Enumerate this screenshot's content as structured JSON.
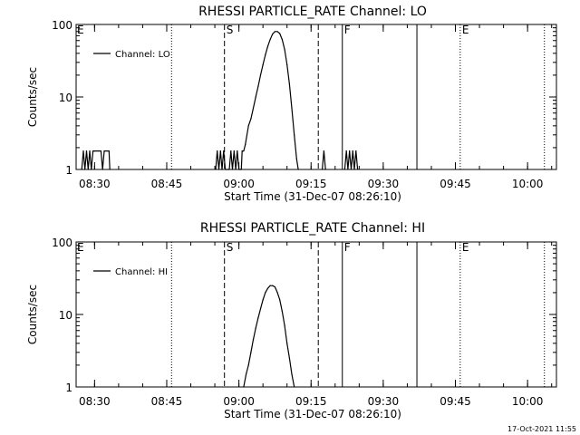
{
  "timestamp": "17-Oct-2021 11:55",
  "chart_data": [
    {
      "type": "line",
      "title": "RHESSI PARTICLE_RATE Channel: LO",
      "xlabel": "Start Time (31-Dec-07 08:26:10)",
      "ylabel": "Counts/sec",
      "yscale": "log",
      "ylim": [
        1,
        100
      ],
      "yticks": [
        "1",
        "10",
        "100"
      ],
      "xlim": [
        "08:26:10",
        "10:06:00"
      ],
      "xticks": [
        "08:30",
        "08:45",
        "09:00",
        "09:15",
        "09:30",
        "09:45",
        "10:00"
      ],
      "legend": {
        "position": "top-left",
        "entries": [
          "Channel: LO"
        ]
      },
      "markers": [
        {
          "time": "08:46:00",
          "style": "dotted",
          "label": ""
        },
        {
          "time": "08:57:00",
          "style": "dashed",
          "label": "S"
        },
        {
          "time": "09:16:30",
          "style": "dashed",
          "label": ""
        },
        {
          "time": "09:21:30",
          "style": "solid",
          "label": "F"
        },
        {
          "time": "09:37:00",
          "style": "solid",
          "label": ""
        },
        {
          "time": "09:46:00",
          "style": "dotted",
          "label": "E"
        },
        {
          "time": "10:03:30",
          "style": "dotted",
          "label": ""
        }
      ],
      "edge_labels": {
        "left": "E"
      },
      "series": [
        {
          "name": "Channel: LO",
          "points": [
            [
              "08:27:20",
              1
            ],
            [
              "08:27:40",
              1.8
            ],
            [
              "08:28:00",
              1
            ],
            [
              "08:28:20",
              1.8
            ],
            [
              "08:28:40",
              1
            ],
            [
              "08:29:00",
              1.8
            ],
            [
              "08:29:20",
              1
            ],
            [
              "08:29:40",
              1.8
            ],
            [
              "08:30:00",
              1.8
            ],
            [
              "08:31:20",
              1.8
            ],
            [
              "08:31:40",
              1
            ],
            [
              "08:32:00",
              1.8
            ],
            [
              "08:33:00",
              1.8
            ],
            [
              "08:33:10",
              1
            ],
            [
              null,
              null
            ],
            [
              "08:55:10",
              1
            ],
            [
              "08:55:30",
              1.8
            ],
            [
              "08:55:50",
              1
            ],
            [
              "08:56:10",
              1.8
            ],
            [
              "08:56:30",
              1
            ],
            [
              "08:56:50",
              1.8
            ],
            [
              "08:57:10",
              1
            ],
            [
              "08:58:00",
              1
            ],
            [
              "08:58:20",
              1.8
            ],
            [
              "08:58:40",
              1
            ],
            [
              "08:59:00",
              1.8
            ],
            [
              "08:59:20",
              1
            ],
            [
              "08:59:40",
              1.8
            ],
            [
              "09:00:00",
              1
            ],
            [
              "09:00:30",
              1
            ],
            [
              "09:00:40",
              1.8
            ],
            [
              "09:01:00",
              1.8
            ],
            [
              "09:01:20",
              2.2
            ],
            [
              "09:01:40",
              3
            ],
            [
              "09:02:00",
              4
            ],
            [
              "09:02:30",
              5
            ],
            [
              "09:03:00",
              7
            ],
            [
              "09:03:30",
              10
            ],
            [
              "09:04:00",
              14
            ],
            [
              "09:04:30",
              20
            ],
            [
              "09:05:00",
              28
            ],
            [
              "09:05:30",
              38
            ],
            [
              "09:06:00",
              50
            ],
            [
              "09:06:30",
              62
            ],
            [
              "09:07:00",
              74
            ],
            [
              "09:07:30",
              80
            ],
            [
              "09:08:00",
              80
            ],
            [
              "09:08:30",
              75
            ],
            [
              "09:09:00",
              62
            ],
            [
              "09:09:30",
              45
            ],
            [
              "09:10:00",
              28
            ],
            [
              "09:10:30",
              15
            ],
            [
              "09:11:00",
              7
            ],
            [
              "09:11:30",
              3
            ],
            [
              "09:12:00",
              1.4
            ],
            [
              "09:12:20",
              1
            ],
            [
              null,
              null
            ],
            [
              "09:17:20",
              1
            ],
            [
              "09:17:40",
              1.8
            ],
            [
              "09:18:00",
              1
            ],
            [
              null,
              null
            ],
            [
              "09:22:00",
              1
            ],
            [
              "09:22:20",
              1.8
            ],
            [
              "09:22:40",
              1
            ],
            [
              "09:23:00",
              1.8
            ],
            [
              "09:23:20",
              1
            ],
            [
              "09:23:40",
              1.8
            ],
            [
              "09:24:00",
              1
            ],
            [
              "09:24:20",
              1.8
            ],
            [
              "09:24:40",
              1
            ]
          ]
        }
      ]
    },
    {
      "type": "line",
      "title": "RHESSI PARTICLE_RATE Channel: HI",
      "xlabel": "Start Time (31-Dec-07 08:26:10)",
      "ylabel": "Counts/sec",
      "yscale": "log",
      "ylim": [
        1,
        100
      ],
      "yticks": [
        "1",
        "10",
        "100"
      ],
      "xlim": [
        "08:26:10",
        "10:06:00"
      ],
      "xticks": [
        "08:30",
        "08:45",
        "09:00",
        "09:15",
        "09:30",
        "09:45",
        "10:00"
      ],
      "legend": {
        "position": "top-left",
        "entries": [
          "Channel: HI"
        ]
      },
      "markers": [
        {
          "time": "08:46:00",
          "style": "dotted",
          "label": ""
        },
        {
          "time": "08:57:00",
          "style": "dashed",
          "label": "S"
        },
        {
          "time": "09:16:30",
          "style": "dashed",
          "label": ""
        },
        {
          "time": "09:21:30",
          "style": "solid",
          "label": "F"
        },
        {
          "time": "09:37:00",
          "style": "solid",
          "label": ""
        },
        {
          "time": "09:46:00",
          "style": "dotted",
          "label": "E"
        },
        {
          "time": "10:03:30",
          "style": "dotted",
          "label": ""
        }
      ],
      "edge_labels": {
        "left": "E"
      },
      "series": [
        {
          "name": "Channel: HI",
          "points": [
            [
              "09:01:00",
              1
            ],
            [
              "09:01:30",
              1.5
            ],
            [
              "09:02:00",
              2
            ],
            [
              "09:02:30",
              3
            ],
            [
              "09:03:00",
              4.5
            ],
            [
              "09:03:30",
              6.5
            ],
            [
              "09:04:00",
              9
            ],
            [
              "09:04:30",
              12
            ],
            [
              "09:05:00",
              16
            ],
            [
              "09:05:30",
              20
            ],
            [
              "09:06:00",
              23
            ],
            [
              "09:06:30",
              25
            ],
            [
              "09:07:00",
              25
            ],
            [
              "09:07:30",
              24
            ],
            [
              "09:08:00",
              20
            ],
            [
              "09:08:30",
              16
            ],
            [
              "09:09:00",
              11
            ],
            [
              "09:09:30",
              7
            ],
            [
              "09:10:00",
              4
            ],
            [
              "09:10:30",
              2.5
            ],
            [
              "09:11:00",
              1.5
            ],
            [
              "09:11:30",
              1
            ]
          ]
        }
      ]
    }
  ]
}
